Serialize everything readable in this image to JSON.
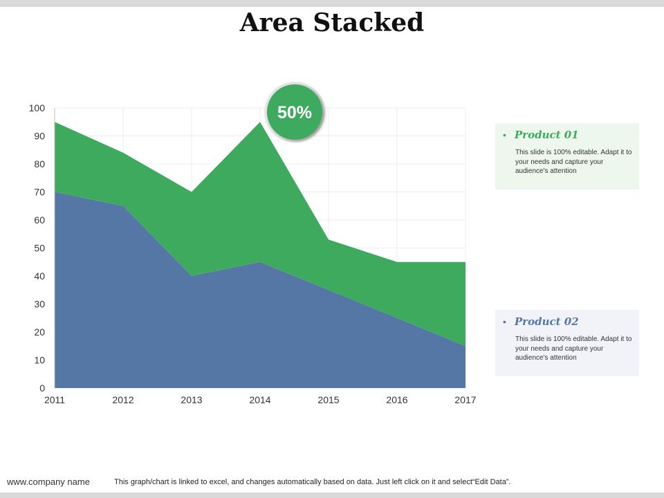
{
  "title": "Area Stacked",
  "badge": "50%",
  "colors": {
    "product01": "#3daa5e",
    "product02": "#5477a6",
    "grid": "#ececec",
    "legend01_bg": "#eef7ee",
    "legend02_bg": "#f1f3f8"
  },
  "legend": [
    {
      "title": "Product 01",
      "text": "This slide is 100% editable.  Adapt it to your needs and capture your audience's attention"
    },
    {
      "title": "Product 02",
      "text": "This slide is 100% editable.  Adapt it to your needs and capture your audience's attention"
    }
  ],
  "footer": {
    "company": "www.company name",
    "note": "This graph/chart is linked to excel, and changes automatically based on data. Just left click on it and select“Edit Data”."
  },
  "chart_data": {
    "type": "area",
    "stacked": true,
    "title": "Area Stacked",
    "categories": [
      "2011",
      "2012",
      "2013",
      "2014",
      "2015",
      "2016",
      "2017"
    ],
    "series": [
      {
        "name": "Product 02",
        "values": [
          70,
          65,
          40,
          45,
          35,
          25,
          15
        ]
      },
      {
        "name": "Product 01",
        "values": [
          25,
          19,
          30,
          50,
          18,
          20,
          30
        ]
      }
    ],
    "ylim": [
      0,
      100
    ],
    "yticks": [
      0,
      10,
      20,
      30,
      40,
      50,
      60,
      70,
      80,
      90,
      100
    ],
    "xlabel": "",
    "ylabel": "",
    "grid": true,
    "annotation": "50%"
  }
}
